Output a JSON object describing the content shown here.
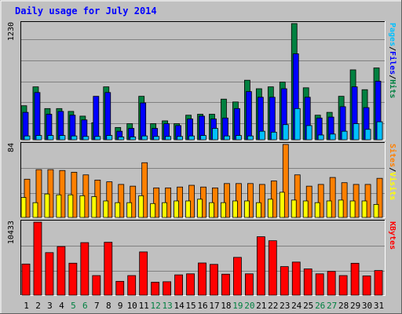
{
  "chart_data": {
    "type": "bar",
    "title": "Daily usage for July 2014",
    "x": [
      1,
      2,
      3,
      4,
      5,
      6,
      7,
      8,
      9,
      10,
      11,
      12,
      13,
      14,
      15,
      16,
      17,
      18,
      19,
      20,
      21,
      22,
      23,
      24,
      25,
      26,
      27,
      28,
      29,
      30,
      31
    ],
    "weekend_days": [
      5,
      6,
      12,
      13,
      19,
      20,
      26,
      27
    ],
    "colors": {
      "background": "#C0C0C0",
      "title": "#0000FF",
      "hits": "#008040",
      "files": "#0000FF",
      "pages": "#00C0FF",
      "visits": "#FFFF00",
      "sites": "#FF8000",
      "kbytes": "#FF0000",
      "weekend_label": "#008040",
      "weekday_label": "#000000"
    },
    "panels": [
      {
        "id": "hits-files-pages",
        "max_label": "1230",
        "max": 1230,
        "legend": [
          {
            "text": "Pages",
            "color": "#00C0FF"
          },
          {
            "text": "/",
            "color": "#000000"
          },
          {
            "text": "Files",
            "color": "#0000FF"
          },
          {
            "text": "/",
            "color": "#000000"
          },
          {
            "text": "Hits",
            "color": "#008040"
          }
        ],
        "series": [
          {
            "key": "hits",
            "values": [
              360,
              560,
              330,
              330,
              300,
              250,
              180,
              560,
              130,
              170,
              460,
              170,
              200,
              170,
              260,
              270,
              270,
              430,
              400,
              630,
              540,
              560,
              610,
              1230,
              550,
              260,
              290,
              460,
              740,
              530,
              760
            ]
          },
          {
            "key": "files",
            "values": [
              290,
              500,
              270,
              300,
              260,
              210,
              460,
              500,
              90,
              120,
              390,
              120,
              170,
              150,
              220,
              250,
              220,
              230,
              330,
              510,
              450,
              450,
              540,
              910,
              450,
              230,
              240,
              350,
              560,
              340,
              620
            ]
          },
          {
            "key": "pages",
            "values": [
              40,
              45,
              45,
              45,
              40,
              35,
              35,
              45,
              30,
              30,
              40,
              35,
              35,
              35,
              40,
              45,
              120,
              40,
              45,
              40,
              90,
              80,
              160,
              330,
              150,
              50,
              60,
              90,
              170,
              110,
              190
            ]
          }
        ]
      },
      {
        "id": "sites-visits",
        "max_label": "84",
        "max": 84,
        "legend": [
          {
            "text": "Sites",
            "color": "#FF8000"
          },
          {
            "text": "/",
            "color": "#000000"
          },
          {
            "text": "Visits",
            "color": "#FFFF00"
          }
        ],
        "series": [
          {
            "key": "sites",
            "values": [
              44,
              55,
              55,
              54,
              52,
              49,
              43,
              41,
              38,
              36,
              63,
              34,
              34,
              35,
              37,
              35,
              34,
              39,
              39,
              39,
              38,
              42,
              84,
              49,
              36,
              38,
              46,
              40,
              38,
              38,
              45
            ]
          },
          {
            "key": "visits",
            "values": [
              23,
              17,
              27,
              26,
              26,
              25,
              24,
              19,
              17,
              17,
              25,
              16,
              17,
              19,
              19,
              21,
              17,
              17,
              19,
              19,
              17,
              21,
              29,
              20,
              19,
              17,
              19,
              20,
              19,
              19,
              15
            ]
          }
        ]
      },
      {
        "id": "kbytes",
        "max_label": "10433",
        "max": 10433,
        "legend": [
          {
            "text": "KBytes",
            "color": "#FF0000"
          }
        ],
        "series": [
          {
            "key": "kbytes",
            "values": [
              4450,
              10433,
              6080,
              6950,
              4570,
              7510,
              2800,
              7560,
              1980,
              2800,
              6180,
              1850,
              1920,
              2900,
              3050,
              4600,
              4400,
              3000,
              5400,
              3050,
              8350,
              7780,
              4080,
              4730,
              3750,
              3050,
              3400,
              2800,
              4560,
              2750,
              3520
            ]
          }
        ]
      }
    ]
  }
}
